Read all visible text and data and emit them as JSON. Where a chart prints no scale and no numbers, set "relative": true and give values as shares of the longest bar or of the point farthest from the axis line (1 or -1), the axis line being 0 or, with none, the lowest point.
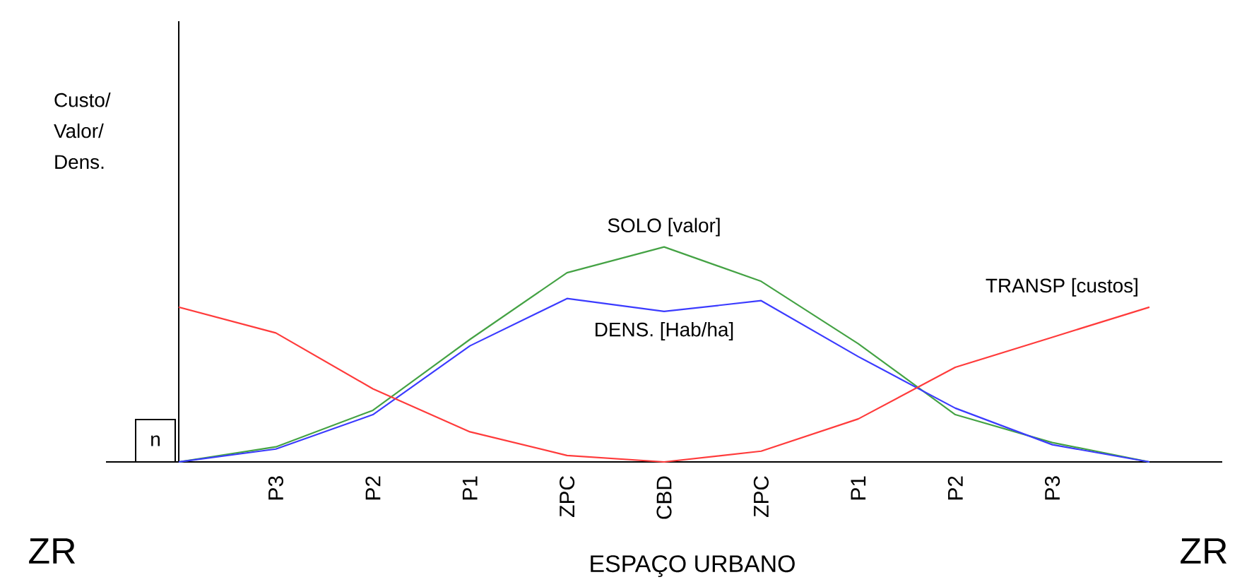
{
  "chart_data": {
    "type": "line",
    "relative": true,
    "xlabel": "ESPAÇO URBANO",
    "ylabel": "Custo/ Valor/ Dens.",
    "tick_labels": "x",
    "categories": [
      null,
      "P3",
      "P2",
      "P1",
      "ZPC",
      "CBD",
      "ZPC",
      "P1",
      "P2",
      "P3",
      null
    ],
    "series": [
      {
        "name": "SOLO [valor]",
        "color": "#44a244",
        "values": [
          0,
          0.07,
          0.24,
          0.57,
          0.88,
          1,
          0.84,
          0.55,
          0.22,
          0.09,
          0
        ]
      },
      {
        "name": "DENS. [Hab/ha]",
        "color": "#3b3bff",
        "values": [
          0,
          0.06,
          0.22,
          0.54,
          0.76,
          0.7,
          0.75,
          0.49,
          0.25,
          0.08,
          0
        ]
      },
      {
        "name": "TRANSP [custos]",
        "color": "#ff3b3b",
        "values": [
          0.72,
          0.6,
          0.34,
          0.14,
          0.03,
          0,
          0.05,
          0.2,
          0.44,
          0.58,
          0.72
        ]
      }
    ],
    "annotations": [
      "ZR",
      "ZR",
      "n"
    ]
  }
}
